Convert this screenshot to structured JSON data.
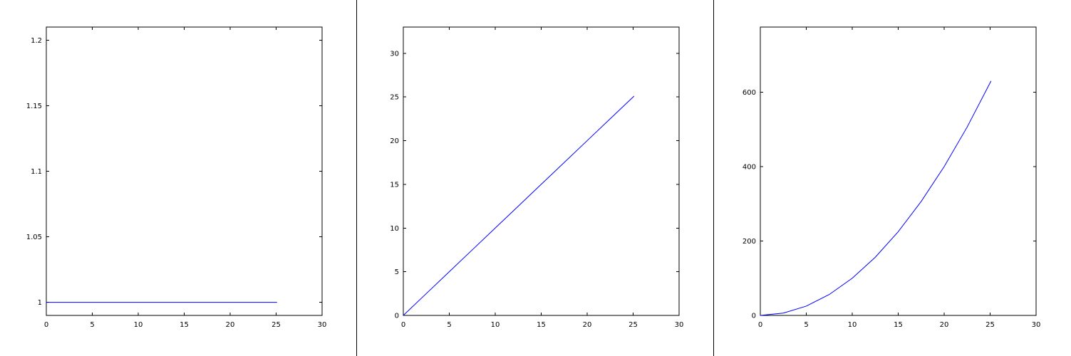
{
  "chart_data": [
    {
      "type": "line",
      "title": "",
      "xlabel": "",
      "ylabel": "",
      "xlim": [
        0,
        30
      ],
      "ylim": [
        0.99,
        1.21
      ],
      "xticks": [
        0,
        5,
        10,
        15,
        20,
        25,
        30
      ],
      "yticks": [
        1,
        1.05,
        1.1,
        1.15,
        1.2
      ],
      "xtick_labels": [
        "0",
        "5",
        "10",
        "15",
        "20",
        "25",
        "30"
      ],
      "ytick_labels": [
        "1",
        "1.05",
        "1.1",
        "1.15",
        "1.2"
      ],
      "grid": false,
      "series": [
        {
          "color": "#0000ff",
          "function": "constant",
          "x": [
            0,
            2.5,
            5,
            7.5,
            10,
            12.5,
            15,
            17.5,
            20,
            22.5,
            25.1
          ],
          "y": [
            1,
            1,
            1,
            1,
            1,
            1,
            1,
            1,
            1,
            1,
            1
          ]
        }
      ]
    },
    {
      "type": "line",
      "title": "",
      "xlabel": "",
      "ylabel": "",
      "xlim": [
        0,
        30
      ],
      "ylim": [
        0,
        33
      ],
      "xticks": [
        0,
        5,
        10,
        15,
        20,
        25,
        30
      ],
      "yticks": [
        0,
        5,
        10,
        15,
        20,
        25,
        30
      ],
      "xtick_labels": [
        "0",
        "5",
        "10",
        "15",
        "20",
        "25",
        "30"
      ],
      "ytick_labels": [
        "0",
        "5",
        "10",
        "15",
        "20",
        "25",
        "30"
      ],
      "grid": false,
      "series": [
        {
          "color": "#0000ff",
          "function": "linear",
          "x": [
            0,
            2.5,
            5,
            7.5,
            10,
            12.5,
            15,
            17.5,
            20,
            22.5,
            25.1
          ],
          "y": [
            0,
            2.5,
            5,
            7.5,
            10,
            12.5,
            15,
            17.5,
            20,
            22.5,
            25.1
          ]
        }
      ]
    },
    {
      "type": "line",
      "title": "",
      "xlabel": "",
      "ylabel": "",
      "xlim": [
        0,
        30
      ],
      "ylim": [
        0,
        775
      ],
      "xticks": [
        0,
        5,
        10,
        15,
        20,
        25,
        30
      ],
      "yticks": [
        0,
        200,
        400,
        600
      ],
      "xtick_labels": [
        "0",
        "5",
        "10",
        "15",
        "20",
        "25",
        "30"
      ],
      "ytick_labels": [
        "0",
        "200",
        "400",
        "600"
      ],
      "grid": false,
      "series": [
        {
          "color": "#0000ff",
          "function": "quadratic",
          "x": [
            0,
            2.5,
            5,
            7.5,
            10,
            12.5,
            15,
            17.5,
            20,
            22.5,
            25.1
          ],
          "y": [
            0,
            6.25,
            25,
            56.25,
            100,
            156.25,
            225,
            306.25,
            400,
            506.25,
            630.01
          ]
        }
      ]
    }
  ]
}
